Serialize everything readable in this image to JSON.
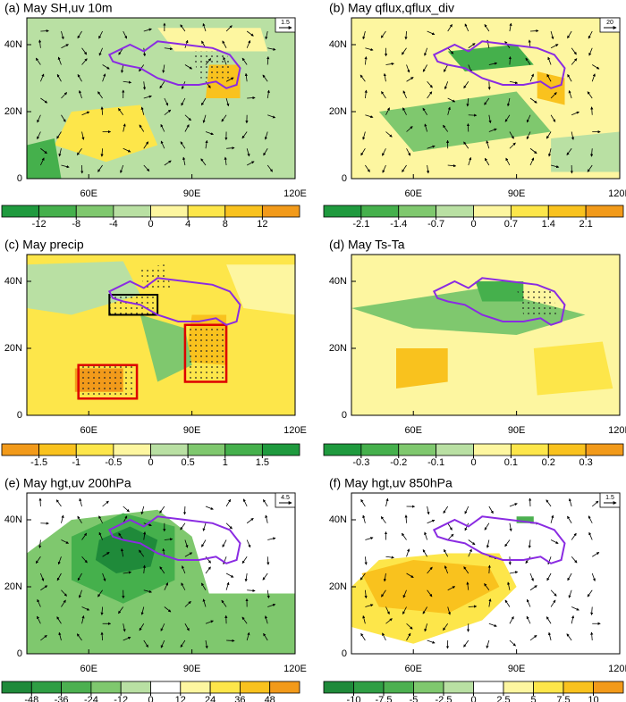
{
  "figure": {
    "map_axes": {
      "xlim": [
        42,
        120
      ],
      "ylim": [
        0,
        48
      ],
      "xticks": [
        {
          "value": 60,
          "label": "60E"
        },
        {
          "value": 90,
          "label": "90E"
        },
        {
          "value": 120,
          "label": "120E"
        }
      ],
      "yticks": [
        {
          "value": 0,
          "label": "0"
        },
        {
          "value": 20,
          "label": "20N"
        },
        {
          "value": 40,
          "label": "40N"
        }
      ]
    },
    "panels": [
      {
        "title": "(a) May SH,uv 10m",
        "ref_vector": "1.5",
        "colorbar": {
          "levels": [
            -12,
            -8,
            -4,
            0,
            4,
            8,
            12
          ],
          "colors": [
            "#1f9a3e",
            "#45b04c",
            "#7fc86e",
            "#b9e0a3",
            "#fdf6a0",
            "#fde64a",
            "#f9c21e",
            "#f29a1a"
          ]
        }
      },
      {
        "title": "(b) May qflux,qflux_div",
        "ref_vector": "20",
        "colorbar": {
          "levels": [
            -2.1,
            -1.4,
            -0.7,
            0,
            0.7,
            1.4,
            2.1
          ],
          "colors": [
            "#1f9a3e",
            "#45b04c",
            "#7fc86e",
            "#b9e0a3",
            "#fdf6a0",
            "#fde64a",
            "#f9c21e",
            "#f29a1a"
          ]
        }
      },
      {
        "title": "(c) May precip",
        "colorbar": {
          "levels": [
            -1.5,
            -1,
            -0.5,
            0,
            0.5,
            1,
            1.5
          ],
          "colors": [
            "#f29a1a",
            "#f9c21e",
            "#fde64a",
            "#fdf6a0",
            "#b9e0a3",
            "#7fc86e",
            "#45b04c",
            "#1f9a3e"
          ]
        }
      },
      {
        "title": "(d) May Ts-Ta",
        "colorbar": {
          "levels": [
            -0.3,
            -0.2,
            -0.1,
            0,
            0.1,
            0.2,
            0.3
          ],
          "colors": [
            "#1f9a3e",
            "#45b04c",
            "#7fc86e",
            "#b9e0a3",
            "#fdf6a0",
            "#fde64a",
            "#f9c21e",
            "#f29a1a"
          ]
        }
      },
      {
        "title": "(e) May hgt,uv 200hPa",
        "ref_vector": "4.5",
        "colorbar": {
          "levels": [
            -48,
            -36,
            -24,
            -12,
            0,
            12,
            24,
            36,
            48
          ],
          "colors": [
            "#1f8a3a",
            "#2f9e44",
            "#4cb050",
            "#7fc86e",
            "#b9e0a3",
            "#ffffff",
            "#fdf6a0",
            "#fde64a",
            "#f9c21e",
            "#f29a1a"
          ]
        }
      },
      {
        "title": "(f) May hgt,uv 850hPa",
        "ref_vector": "1.5",
        "colorbar": {
          "levels": [
            -10,
            -7.5,
            -5,
            -2.5,
            0,
            2.5,
            5,
            7.5,
            10
          ],
          "colors": [
            "#1f8a3a",
            "#2f9e44",
            "#4cb050",
            "#7fc86e",
            "#b9e0a3",
            "#ffffff",
            "#fdf6a0",
            "#fde64a",
            "#f9c21e",
            "#f29a1a"
          ]
        }
      }
    ]
  }
}
